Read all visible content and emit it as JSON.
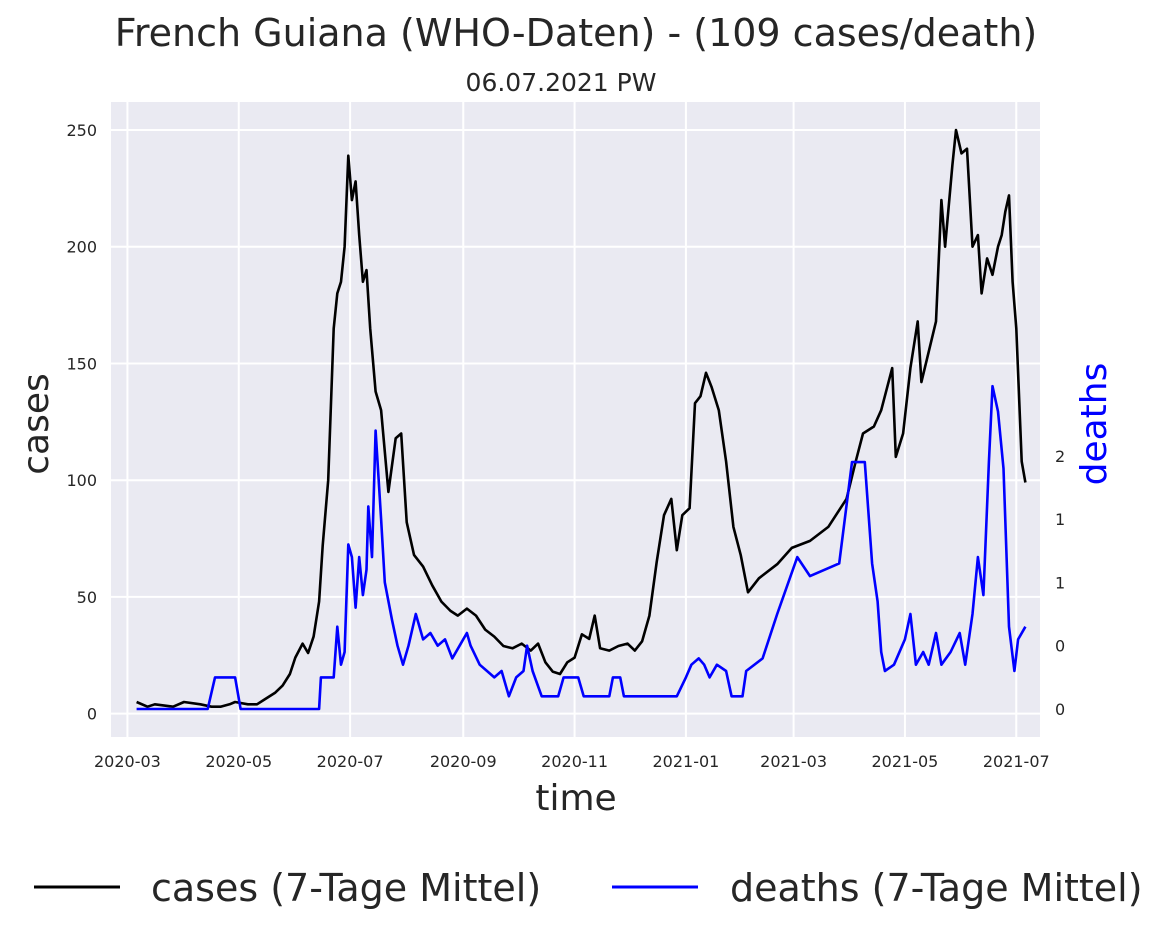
{
  "chart_data": {
    "type": "line",
    "title": "French Guiana (WHO-Daten) - (109 cases/death)",
    "subtitle": "06.07.2021 PW",
    "xlabel": "time",
    "ylabel": "cases",
    "ylabel_right": "deaths",
    "xlim": [
      "2020-02-21",
      "2021-07-14"
    ],
    "ylim": [
      -10,
      262
    ],
    "xticks": [
      "2020-03",
      "2020-05",
      "2020-07",
      "2020-09",
      "2020-11",
      "2021-01",
      "2021-03",
      "2021-05",
      "2021-07"
    ],
    "yticks": [
      0,
      50,
      100,
      150,
      200,
      250
    ],
    "yticks_right_labels": [
      "0",
      "0",
      "1",
      "1",
      "2"
    ],
    "grid": true,
    "legend_position": "bottom",
    "series": [
      {
        "name": "cases (7-Tage Mittel)",
        "color": "#000000",
        "axis": "left",
        "points": [
          [
            "2020-03-06",
            5
          ],
          [
            "2020-03-12",
            3
          ],
          [
            "2020-03-16",
            4
          ],
          [
            "2020-03-26",
            3
          ],
          [
            "2020-04-01",
            5
          ],
          [
            "2020-04-10",
            4
          ],
          [
            "2020-04-16",
            3
          ],
          [
            "2020-04-21",
            3
          ],
          [
            "2020-04-26",
            4
          ],
          [
            "2020-04-29",
            5
          ],
          [
            "2020-05-06",
            4
          ],
          [
            "2020-05-11",
            4
          ],
          [
            "2020-05-15",
            6
          ],
          [
            "2020-05-21",
            9
          ],
          [
            "2020-05-25",
            12
          ],
          [
            "2020-05-29",
            17
          ],
          [
            "2020-06-01",
            24
          ],
          [
            "2020-06-05",
            30
          ],
          [
            "2020-06-08",
            26
          ],
          [
            "2020-06-11",
            33
          ],
          [
            "2020-06-14",
            48
          ],
          [
            "2020-06-16",
            72
          ],
          [
            "2020-06-19",
            100
          ],
          [
            "2020-06-22",
            165
          ],
          [
            "2020-06-24",
            180
          ],
          [
            "2020-06-26",
            185
          ],
          [
            "2020-06-28",
            200
          ],
          [
            "2020-06-30",
            239
          ],
          [
            "2020-07-02",
            220
          ],
          [
            "2020-07-04",
            228
          ],
          [
            "2020-07-06",
            205
          ],
          [
            "2020-07-08",
            185
          ],
          [
            "2020-07-10",
            190
          ],
          [
            "2020-07-12",
            165
          ],
          [
            "2020-07-15",
            138
          ],
          [
            "2020-07-18",
            130
          ],
          [
            "2020-07-22",
            95
          ],
          [
            "2020-07-26",
            118
          ],
          [
            "2020-07-29",
            120
          ],
          [
            "2020-08-01",
            82
          ],
          [
            "2020-08-05",
            68
          ],
          [
            "2020-08-10",
            63
          ],
          [
            "2020-08-15",
            55
          ],
          [
            "2020-08-20",
            48
          ],
          [
            "2020-08-25",
            44
          ],
          [
            "2020-08-29",
            42
          ],
          [
            "2020-09-03",
            45
          ],
          [
            "2020-09-08",
            42
          ],
          [
            "2020-09-13",
            36
          ],
          [
            "2020-09-18",
            33
          ],
          [
            "2020-09-23",
            29
          ],
          [
            "2020-09-28",
            28
          ],
          [
            "2020-10-03",
            30
          ],
          [
            "2020-10-08",
            27
          ],
          [
            "2020-10-12",
            30
          ],
          [
            "2020-10-16",
            22
          ],
          [
            "2020-10-20",
            18
          ],
          [
            "2020-10-24",
            17
          ],
          [
            "2020-10-28",
            22
          ],
          [
            "2020-11-01",
            24
          ],
          [
            "2020-11-05",
            34
          ],
          [
            "2020-11-09",
            32
          ],
          [
            "2020-11-12",
            42
          ],
          [
            "2020-11-15",
            28
          ],
          [
            "2020-11-20",
            27
          ],
          [
            "2020-11-25",
            29
          ],
          [
            "2020-11-30",
            30
          ],
          [
            "2020-12-04",
            27
          ],
          [
            "2020-12-08",
            31
          ],
          [
            "2020-12-12",
            42
          ],
          [
            "2020-12-16",
            65
          ],
          [
            "2020-12-20",
            85
          ],
          [
            "2020-12-24",
            92
          ],
          [
            "2020-12-27",
            70
          ],
          [
            "2020-12-30",
            85
          ],
          [
            "2021-01-03",
            88
          ],
          [
            "2021-01-06",
            133
          ],
          [
            "2021-01-09",
            136
          ],
          [
            "2021-01-12",
            146
          ],
          [
            "2021-01-15",
            140
          ],
          [
            "2021-01-19",
            130
          ],
          [
            "2021-01-23",
            108
          ],
          [
            "2021-01-27",
            80
          ],
          [
            "2021-01-31",
            68
          ],
          [
            "2021-02-04",
            52
          ],
          [
            "2021-02-10",
            58
          ],
          [
            "2021-02-20",
            64
          ],
          [
            "2021-02-28",
            71
          ],
          [
            "2021-03-10",
            74
          ],
          [
            "2021-03-20",
            80
          ],
          [
            "2021-03-30",
            92
          ],
          [
            "2021-04-04",
            108
          ],
          [
            "2021-04-08",
            120
          ],
          [
            "2021-04-14",
            123
          ],
          [
            "2021-04-18",
            130
          ],
          [
            "2021-04-24",
            148
          ],
          [
            "2021-04-26",
            110
          ],
          [
            "2021-04-30",
            120
          ],
          [
            "2021-05-04",
            148
          ],
          [
            "2021-05-08",
            168
          ],
          [
            "2021-05-10",
            142
          ],
          [
            "2021-05-14",
            155
          ],
          [
            "2021-05-18",
            168
          ],
          [
            "2021-05-21",
            220
          ],
          [
            "2021-05-23",
            200
          ],
          [
            "2021-05-27",
            235
          ],
          [
            "2021-05-29",
            250
          ],
          [
            "2021-06-01",
            240
          ],
          [
            "2021-06-04",
            242
          ],
          [
            "2021-06-07",
            200
          ],
          [
            "2021-06-10",
            205
          ],
          [
            "2021-06-12",
            180
          ],
          [
            "2021-06-15",
            195
          ],
          [
            "2021-06-18",
            188
          ],
          [
            "2021-06-21",
            200
          ],
          [
            "2021-06-23",
            205
          ],
          [
            "2021-06-25",
            215
          ],
          [
            "2021-06-27",
            222
          ],
          [
            "2021-06-29",
            185
          ],
          [
            "2021-07-01",
            165
          ],
          [
            "2021-07-04",
            108
          ],
          [
            "2021-07-06",
            99
          ]
        ]
      },
      {
        "name": "deaths (7-Tage Mittel)",
        "color": "#0000ff",
        "axis": "right",
        "points": [
          [
            "2020-03-06",
            0.0
          ],
          [
            "2020-04-11",
            0.0
          ],
          [
            "2020-04-14",
            0.0
          ],
          [
            "2020-04-18",
            0.25
          ],
          [
            "2020-04-29",
            0.25
          ],
          [
            "2020-05-02",
            0.0
          ],
          [
            "2020-06-14",
            0.0
          ],
          [
            "2020-06-15",
            0.25
          ],
          [
            "2020-06-22",
            0.25
          ],
          [
            "2020-06-24",
            0.65
          ],
          [
            "2020-06-26",
            0.35
          ],
          [
            "2020-06-28",
            0.45
          ],
          [
            "2020-06-30",
            1.3
          ],
          [
            "2020-07-02",
            1.2
          ],
          [
            "2020-07-04",
            0.8
          ],
          [
            "2020-07-06",
            1.2
          ],
          [
            "2020-07-08",
            0.9
          ],
          [
            "2020-07-10",
            1.1
          ],
          [
            "2020-07-11",
            1.6
          ],
          [
            "2020-07-13",
            1.2
          ],
          [
            "2020-07-15",
            2.2
          ],
          [
            "2020-07-18",
            1.5
          ],
          [
            "2020-07-20",
            1.0
          ],
          [
            "2020-07-24",
            0.7
          ],
          [
            "2020-07-27",
            0.5
          ],
          [
            "2020-07-30",
            0.35
          ],
          [
            "2020-08-02",
            0.5
          ],
          [
            "2020-08-06",
            0.75
          ],
          [
            "2020-08-10",
            0.55
          ],
          [
            "2020-08-14",
            0.6
          ],
          [
            "2020-08-18",
            0.5
          ],
          [
            "2020-08-22",
            0.55
          ],
          [
            "2020-08-26",
            0.4
          ],
          [
            "2020-08-30",
            0.5
          ],
          [
            "2020-09-03",
            0.6
          ],
          [
            "2020-09-05",
            0.5
          ],
          [
            "2020-09-10",
            0.35
          ],
          [
            "2020-09-14",
            0.3
          ],
          [
            "2020-09-18",
            0.25
          ],
          [
            "2020-09-22",
            0.3
          ],
          [
            "2020-09-26",
            0.1
          ],
          [
            "2020-09-30",
            0.25
          ],
          [
            "2020-10-04",
            0.3
          ],
          [
            "2020-10-06",
            0.5
          ],
          [
            "2020-10-09",
            0.3
          ],
          [
            "2020-10-14",
            0.1
          ],
          [
            "2020-10-23",
            0.1
          ],
          [
            "2020-10-26",
            0.25
          ],
          [
            "2020-11-03",
            0.25
          ],
          [
            "2020-11-06",
            0.1
          ],
          [
            "2020-11-20",
            0.1
          ],
          [
            "2020-11-22",
            0.25
          ],
          [
            "2020-11-26",
            0.25
          ],
          [
            "2020-11-28",
            0.1
          ],
          [
            "2020-12-27",
            0.1
          ],
          [
            "2021-01-01",
            0.25
          ],
          [
            "2021-01-04",
            0.35
          ],
          [
            "2021-01-08",
            0.4
          ],
          [
            "2021-01-11",
            0.35
          ],
          [
            "2021-01-14",
            0.25
          ],
          [
            "2021-01-18",
            0.35
          ],
          [
            "2021-01-23",
            0.3
          ],
          [
            "2021-01-26",
            0.1
          ],
          [
            "2021-02-01",
            0.1
          ],
          [
            "2021-02-03",
            0.3
          ],
          [
            "2021-02-12",
            0.4
          ],
          [
            "2021-02-20",
            0.75
          ],
          [
            "2021-03-03",
            1.2
          ],
          [
            "2021-03-10",
            1.05
          ],
          [
            "2021-03-26",
            1.15
          ],
          [
            "2021-04-02",
            1.95
          ],
          [
            "2021-04-09",
            1.95
          ],
          [
            "2021-04-13",
            1.15
          ],
          [
            "2021-04-16",
            0.85
          ],
          [
            "2021-04-18",
            0.45
          ],
          [
            "2021-04-20",
            0.3
          ],
          [
            "2021-04-25",
            0.35
          ],
          [
            "2021-05-01",
            0.55
          ],
          [
            "2021-05-04",
            0.75
          ],
          [
            "2021-05-07",
            0.35
          ],
          [
            "2021-05-11",
            0.45
          ],
          [
            "2021-05-14",
            0.35
          ],
          [
            "2021-05-18",
            0.6
          ],
          [
            "2021-05-21",
            0.35
          ],
          [
            "2021-05-26",
            0.45
          ],
          [
            "2021-05-31",
            0.6
          ],
          [
            "2021-06-03",
            0.35
          ],
          [
            "2021-06-07",
            0.75
          ],
          [
            "2021-06-10",
            1.2
          ],
          [
            "2021-06-13",
            0.9
          ],
          [
            "2021-06-16",
            1.95
          ],
          [
            "2021-06-18",
            2.55
          ],
          [
            "2021-06-21",
            2.35
          ],
          [
            "2021-06-24",
            1.9
          ],
          [
            "2021-06-27",
            0.65
          ],
          [
            "2021-06-30",
            0.3
          ],
          [
            "2021-07-02",
            0.55
          ],
          [
            "2021-07-06",
            0.65
          ]
        ]
      }
    ]
  }
}
